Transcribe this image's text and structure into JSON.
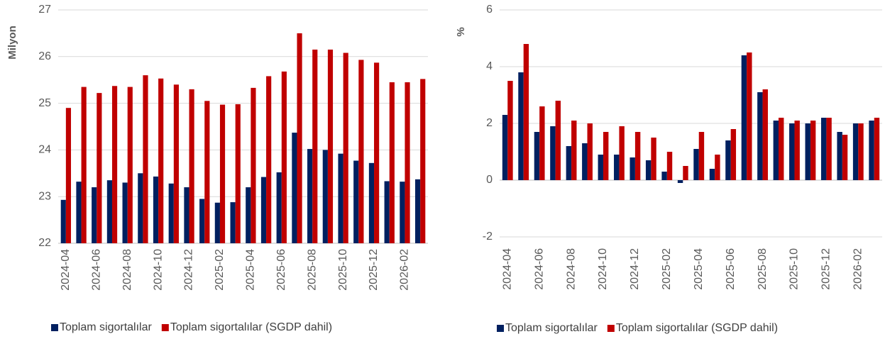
{
  "chart_data": [
    {
      "type": "bar",
      "y_label": "Milyon",
      "categories": [
        "2024-04",
        null,
        "2024-06",
        null,
        "2024-08",
        null,
        "2024-10",
        null,
        "2024-12",
        null,
        "2025-02",
        null,
        "2025-04",
        null,
        "2025-06",
        null,
        "2025-08",
        null,
        "2025-10",
        null,
        "2025-12",
        null,
        "2026-02",
        null
      ],
      "series": [
        {
          "name": "Toplam sigortalılar",
          "color": "#002060",
          "values": [
            22.93,
            23.32,
            23.2,
            23.35,
            23.3,
            23.5,
            23.43,
            23.28,
            23.2,
            22.95,
            22.87,
            22.88,
            23.2,
            23.42,
            23.52,
            24.37,
            24.02,
            24.0,
            23.92,
            23.77,
            23.72,
            23.33,
            23.32,
            23.37
          ]
        },
        {
          "name": "Toplam sigortalılar (SGDP dahil)",
          "color": "#c00000",
          "values": [
            24.9,
            25.35,
            25.22,
            25.37,
            25.35,
            25.6,
            25.53,
            25.4,
            25.3,
            25.05,
            24.97,
            24.98,
            25.33,
            25.58,
            25.68,
            26.5,
            26.15,
            26.15,
            26.08,
            25.93,
            25.87,
            25.45,
            25.45,
            25.52
          ]
        }
      ],
      "ylim": [
        22,
        27
      ],
      "yticks": [
        22,
        23,
        24,
        25,
        26,
        27
      ],
      "grid": true
    },
    {
      "type": "bar",
      "y_label": "%",
      "categories": [
        "2024-04",
        null,
        "2024-06",
        null,
        "2024-08",
        null,
        "2024-10",
        null,
        "2024-12",
        null,
        "2025-02",
        null,
        "2025-04",
        null,
        "2025-06",
        null,
        "2025-08",
        null,
        "2025-10",
        null,
        "2025-12",
        null,
        "2026-02",
        null
      ],
      "series": [
        {
          "name": "Toplam sigortalılar",
          "color": "#002060",
          "values": [
            2.3,
            3.8,
            1.7,
            1.9,
            1.2,
            1.3,
            0.9,
            0.9,
            0.8,
            0.7,
            0.3,
            -0.1,
            1.1,
            0.4,
            1.4,
            4.4,
            3.1,
            2.1,
            2.0,
            2.0,
            2.2,
            1.7,
            2.0,
            2.1
          ]
        },
        {
          "name": "Toplam sigortalılar (SGDP dahil)",
          "color": "#c00000",
          "values": [
            3.5,
            4.8,
            2.6,
            2.8,
            2.1,
            2.0,
            1.7,
            1.9,
            1.7,
            1.5,
            1.0,
            0.5,
            1.7,
            0.9,
            1.8,
            4.5,
            3.2,
            2.2,
            2.1,
            2.1,
            2.2,
            1.6,
            2.0,
            2.2
          ]
        }
      ],
      "ylim": [
        -2,
        6
      ],
      "yticks": [
        -2,
        0,
        2,
        4,
        6
      ],
      "grid": true
    }
  ]
}
